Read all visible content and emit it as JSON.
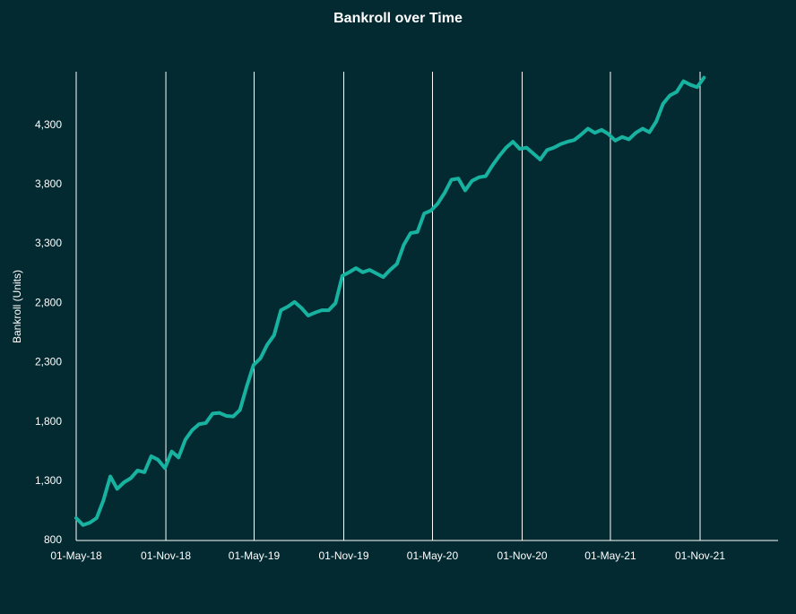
{
  "chart_data": {
    "type": "line",
    "title": "Bankroll over Time",
    "y_label": "Bankroll  (Units)",
    "color": "#17b3a0",
    "background": "#032a31",
    "grid_x": true,
    "x": [
      "2018-05-01",
      "2018-05-15",
      "2018-05-29",
      "2018-06-12",
      "2018-06-26",
      "2018-07-10",
      "2018-07-24",
      "2018-08-07",
      "2018-08-21",
      "2018-09-04",
      "2018-09-18",
      "2018-10-02",
      "2018-10-16",
      "2018-10-30",
      "2018-11-13",
      "2018-11-27",
      "2018-12-11",
      "2018-12-25",
      "2019-01-08",
      "2019-01-22",
      "2019-02-05",
      "2019-02-19",
      "2019-03-05",
      "2019-03-19",
      "2019-04-02",
      "2019-04-16",
      "2019-04-30",
      "2019-05-14",
      "2019-05-28",
      "2019-06-11",
      "2019-06-25",
      "2019-07-09",
      "2019-07-23",
      "2019-08-06",
      "2019-08-20",
      "2019-09-03",
      "2019-09-17",
      "2019-10-01",
      "2019-10-15",
      "2019-10-29",
      "2019-11-12",
      "2019-11-26",
      "2019-12-10",
      "2019-12-24",
      "2020-01-07",
      "2020-01-21",
      "2020-02-04",
      "2020-02-18",
      "2020-03-03",
      "2020-03-17",
      "2020-03-31",
      "2020-04-14",
      "2020-04-28",
      "2020-05-12",
      "2020-05-26",
      "2020-06-09",
      "2020-06-23",
      "2020-07-07",
      "2020-07-21",
      "2020-08-04",
      "2020-08-18",
      "2020-09-01",
      "2020-09-15",
      "2020-09-29",
      "2020-10-13",
      "2020-10-27",
      "2020-11-10",
      "2020-11-24",
      "2020-12-08",
      "2020-12-22",
      "2021-01-05",
      "2021-01-19",
      "2021-02-02",
      "2021-02-16",
      "2021-03-02",
      "2021-03-16",
      "2021-03-30",
      "2021-04-13",
      "2021-04-27",
      "2021-05-11",
      "2021-05-25",
      "2021-06-08",
      "2021-06-22",
      "2021-07-06",
      "2021-07-20",
      "2021-08-03",
      "2021-08-17",
      "2021-08-31",
      "2021-09-14",
      "2021-09-28",
      "2021-10-12",
      "2021-10-26",
      "2021-11-09"
    ],
    "values": [
      989,
      930,
      950,
      990,
      1140,
      1340,
      1235,
      1290,
      1325,
      1390,
      1375,
      1510,
      1480,
      1410,
      1550,
      1500,
      1650,
      1730,
      1780,
      1790,
      1870,
      1875,
      1850,
      1845,
      1900,
      2100,
      2280,
      2335,
      2450,
      2530,
      2740,
      2770,
      2810,
      2760,
      2695,
      2720,
      2740,
      2740,
      2800,
      3030,
      3060,
      3095,
      3060,
      3080,
      3050,
      3020,
      3080,
      3130,
      3290,
      3390,
      3400,
      3555,
      3580,
      3640,
      3730,
      3840,
      3850,
      3750,
      3830,
      3860,
      3870,
      3960,
      4040,
      4110,
      4160,
      4100,
      4110,
      4060,
      4010,
      4090,
      4110,
      4140,
      4160,
      4175,
      4220,
      4270,
      4235,
      4260,
      4225,
      4170,
      4200,
      4180,
      4235,
      4270,
      4240,
      4330,
      4480,
      4550,
      4580,
      4670,
      4640,
      4620,
      4700
    ],
    "xlim": [
      "2018-05-01",
      "2022-04-10"
    ],
    "xticks": [
      {
        "value": "2018-05-01",
        "label": "01-May-18"
      },
      {
        "value": "2018-11-01",
        "label": "01-Nov-18"
      },
      {
        "value": "2019-05-01",
        "label": "01-May-19"
      },
      {
        "value": "2019-11-01",
        "label": "01-Nov-19"
      },
      {
        "value": "2020-05-01",
        "label": "01-May-20"
      },
      {
        "value": "2020-11-01",
        "label": "01-Nov-20"
      },
      {
        "value": "2021-05-01",
        "label": "01-May-21"
      },
      {
        "value": "2021-11-01",
        "label": "01-Nov-21"
      }
    ],
    "ylim": [
      800,
      4750
    ],
    "yticks": [
      800,
      {
        "value": 1300,
        "label": "1,300"
      },
      {
        "value": 1800,
        "label": "1,800"
      },
      {
        "value": 2300,
        "label": "2,300"
      },
      {
        "value": 2800,
        "label": "2,800"
      },
      {
        "value": 3300,
        "label": "3,300"
      },
      {
        "value": 3800,
        "label": "3,800"
      },
      {
        "value": 4300,
        "label": "4,300"
      }
    ]
  }
}
